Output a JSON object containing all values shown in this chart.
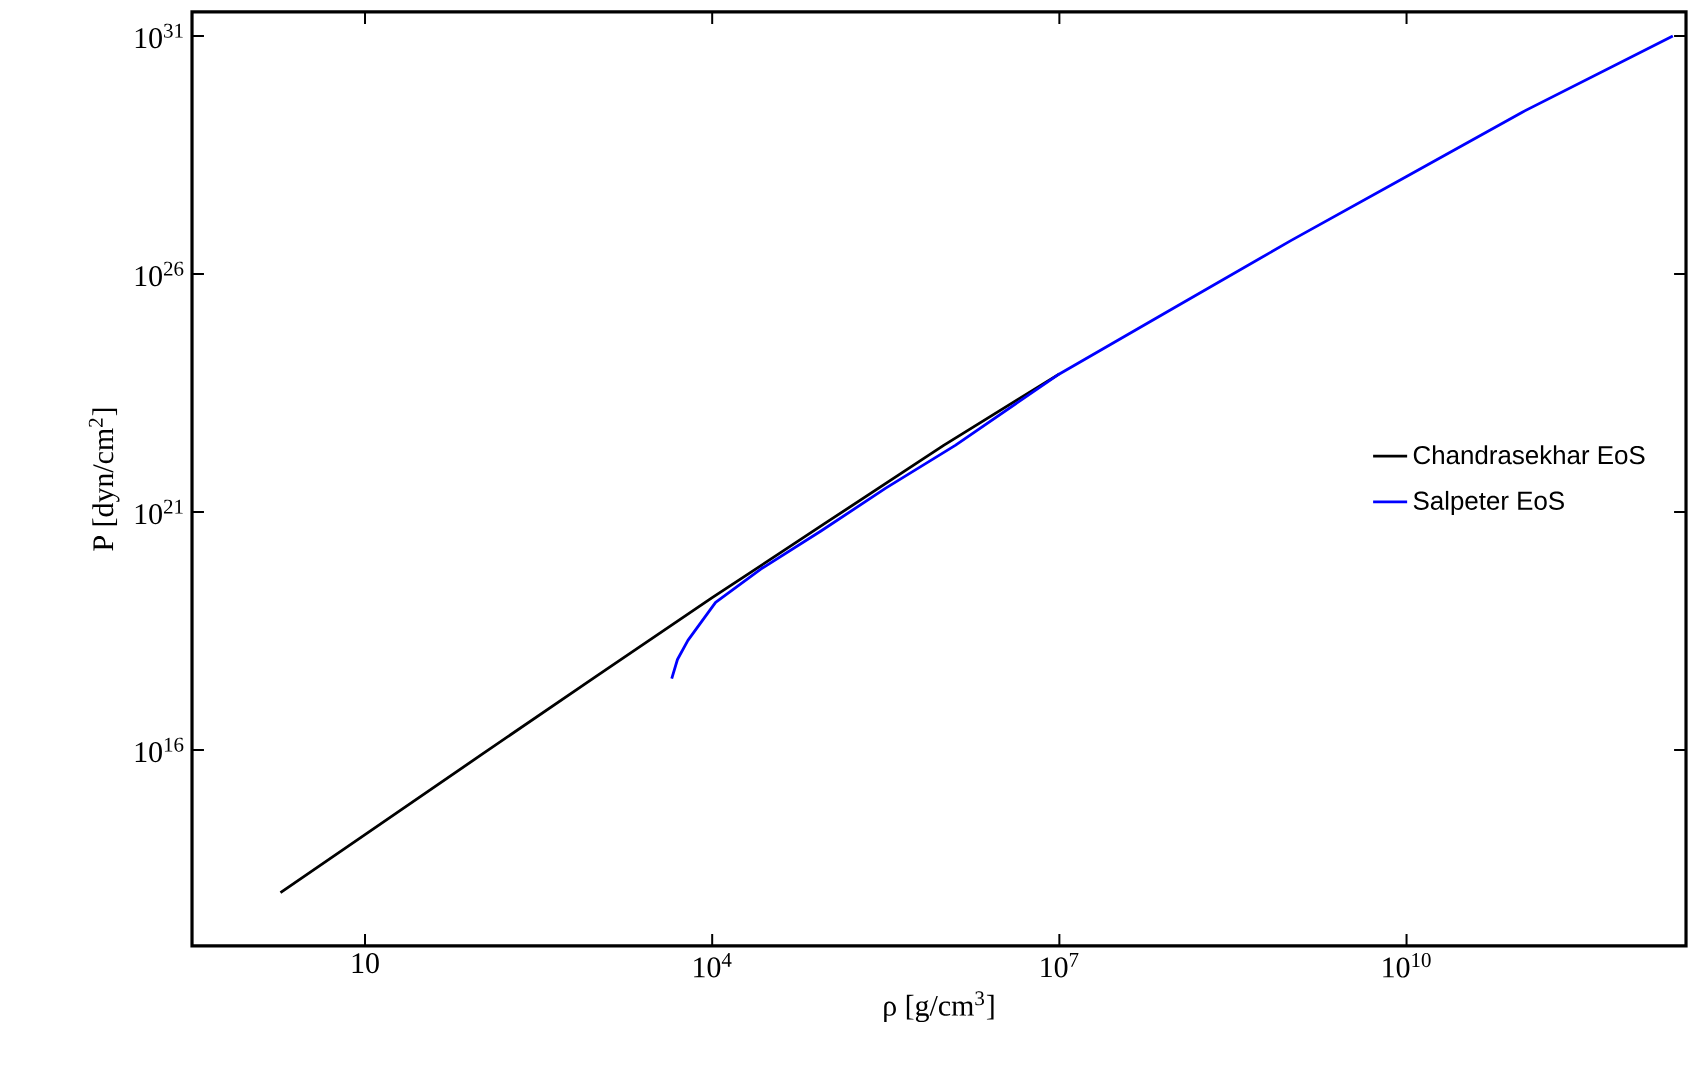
{
  "chart_data": {
    "type": "line",
    "xlabel": "ρ  [g/cm$^{3}$]",
    "ylabel": "P [dyn/cm$^{2}$]",
    "log": "xy",
    "legend": "right",
    "marker": "none",
    "line_style": "solid",
    "grid": false,
    "xlim": [
      0.32,
      2600000000000.0
    ],
    "ylim": [
      760000000000.0,
      3.2e+31
    ],
    "xticks": [
      10,
      {
        "value": 10000.0,
        "label": "10$^{4}$"
      },
      {
        "value": 10000000.0,
        "label": "10$^{7}$"
      },
      {
        "value": 10000000000.0,
        "label": "10$^{10}$"
      }
    ],
    "yticks": [
      {
        "value": 1e+16,
        "label": "10$^{16}$"
      },
      {
        "value": 1e+21,
        "label": "10$^{21}$"
      },
      {
        "value": 1e+26,
        "label": "10$^{26}$"
      },
      {
        "value": 1e+31,
        "label": "10$^{31}$"
      }
    ],
    "series": [
      {
        "name": "Chandrasekhar EoS",
        "color": "#000000",
        "x": [
          1.86,
          10,
          100,
          1000,
          10000.0,
          100000.0,
          1000000.0,
          10000000.0
        ],
        "values": [
          10000000000000.0,
          166000000000000.0,
          7760000000000000.0,
          3.55e+17,
          1.58e+19,
          6.31e+20,
          2.51e+22,
          7.94e+23
        ]
      },
      {
        "name": "Salpeter EoS",
        "color": "#0000ff",
        "x": [
          4470.0,
          5010.0,
          6170.0,
          10700.0,
          26300.0,
          87100.0,
          316000.0,
          1260000.0,
          10000000.0,
          100000000.0,
          1000000000.0,
          10000000000.0,
          100000000000.0,
          2000000000000.0
        ],
        "values": [
          3.16e+17,
          7.94e+17,
          2e+18,
          1.26e+19,
          6.31e+19,
          3.98e+20,
          3.16e+21,
          2.51e+22,
          7.94e+23,
          2e+25,
          5.01e+26,
          1.12e+28,
          2.51e+29,
          1e+31
        ]
      }
    ]
  }
}
